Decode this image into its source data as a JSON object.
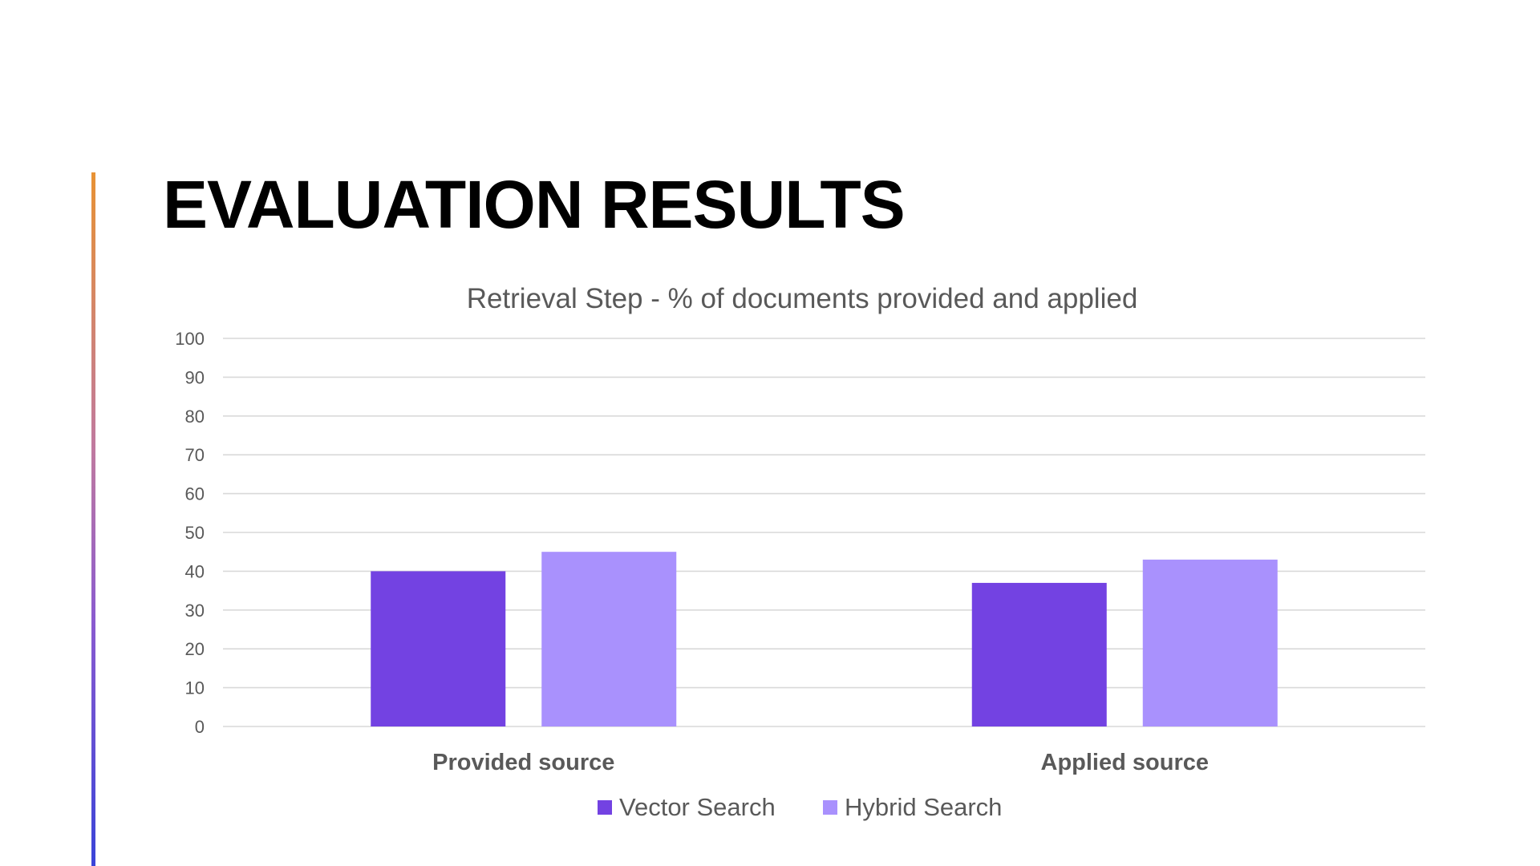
{
  "slide": {
    "title": "EVALUATION RESULTS"
  },
  "chart_data": {
    "type": "bar",
    "title": "Retrieval Step - % of documents provided and applied",
    "categories": [
      "Provided source",
      "Applied source"
    ],
    "series": [
      {
        "name": "Vector Search",
        "values": [
          40,
          37
        ],
        "color": "#7342e2"
      },
      {
        "name": "Hybrid Search",
        "values": [
          45,
          43
        ],
        "color": "#a991fd"
      }
    ],
    "ylim": [
      0,
      100
    ],
    "yticks": [
      0,
      10,
      20,
      30,
      40,
      50,
      60,
      70,
      80,
      90,
      100
    ],
    "grid": true,
    "legend": "bottom",
    "xlabel": "",
    "ylabel": ""
  },
  "colors": {
    "accent_top": "#e89234",
    "accent_bottom": "#3a44d8",
    "gridline": "#d9d9d9",
    "text": "#595959"
  }
}
